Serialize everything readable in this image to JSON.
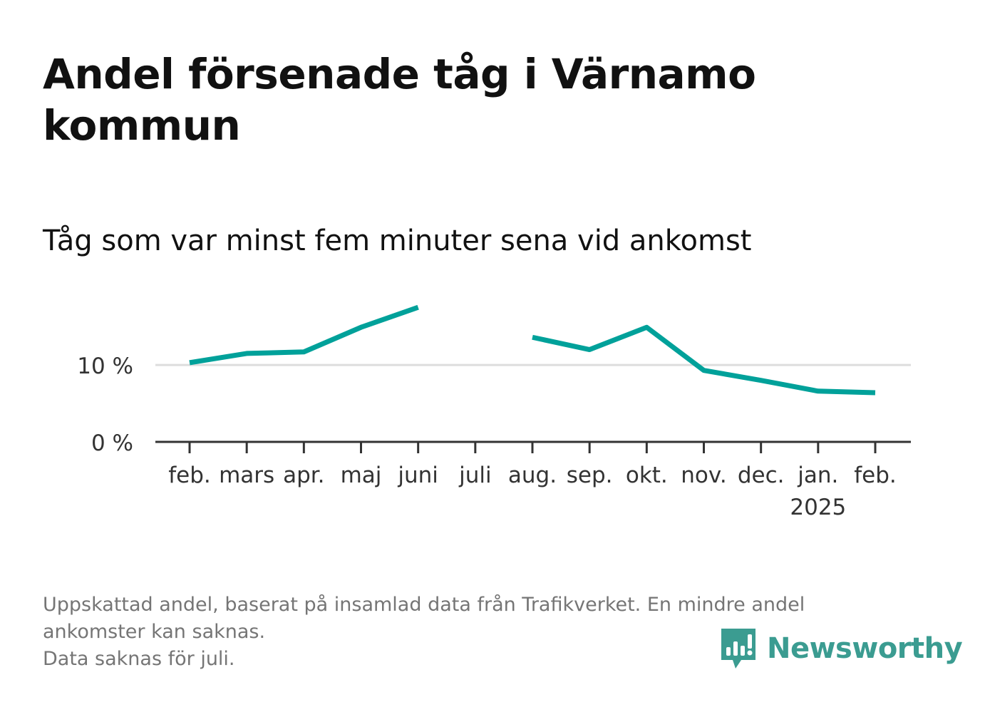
{
  "title": "Andel försenade tåg i Värnamo kommun",
  "subtitle": "Tåg som var minst fem minuter sena vid ankomst",
  "footnote": {
    "line1": "Uppskattad andel, baserat på insamlad data från Trafikverket. En mindre andel",
    "line2": "ankomster kan saknas.",
    "line3": "Data saknas för juli."
  },
  "brand": {
    "name": "Newsworthy",
    "icon": "newsworthy-logo-icon",
    "color": "#3b9c91"
  },
  "colors": {
    "line": "#00a19a",
    "grid": "#dddddd",
    "axis": "#333333",
    "text": "#111111",
    "muted": "#757575"
  },
  "chart_data": {
    "type": "line",
    "title": "Andel försenade tåg i Värnamo kommun",
    "subtitle": "Tåg som var minst fem minuter sena vid ankomst",
    "categories": [
      "feb.",
      "mars",
      "apr.",
      "maj",
      "juni",
      "juli",
      "aug.",
      "sep.",
      "okt.",
      "nov.",
      "dec.",
      "jan.",
      "feb."
    ],
    "year_label": "2025",
    "year_label_index": 11,
    "series": [
      {
        "values": [
          10.3,
          11.5,
          11.7,
          14.9,
          17.5,
          null,
          13.6,
          12.0,
          14.9,
          9.3,
          8.0,
          6.6,
          6.4
        ]
      }
    ],
    "y_ticks": [
      0,
      10
    ],
    "y_tick_labels": [
      "0 %",
      "10 %"
    ],
    "ylim": [
      0,
      19
    ],
    "xlabel": "",
    "ylabel": "",
    "grid": true,
    "legend": "none"
  }
}
